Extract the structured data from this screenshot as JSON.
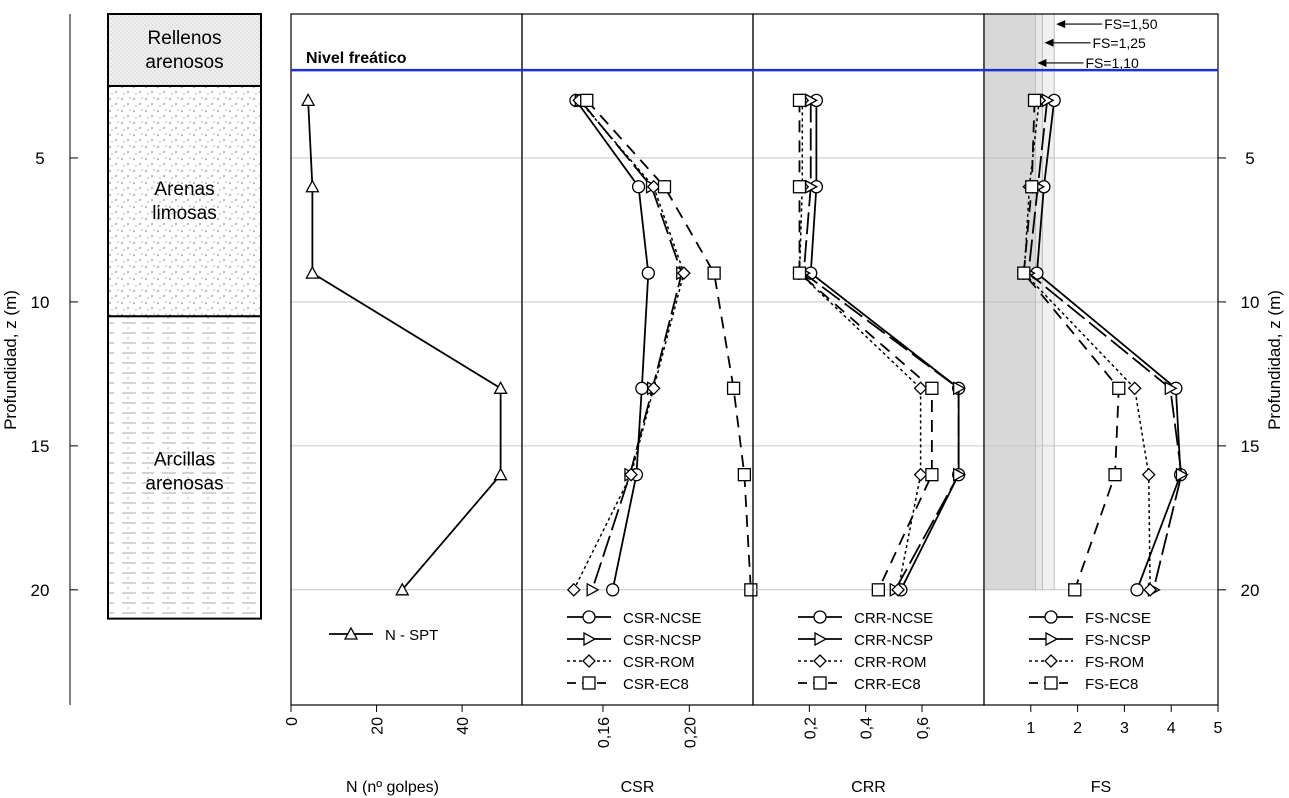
{
  "y_axis": {
    "label": "Profundidad, z (m)",
    "ticks": [
      5,
      10,
      15,
      20
    ],
    "range": [
      0,
      24
    ]
  },
  "soil_column": {
    "layers": [
      {
        "name_lines": [
          "Rellenos",
          "arenosos"
        ],
        "top": 0,
        "bottom": 2.5,
        "pattern": "fine-dots"
      },
      {
        "name_lines": [
          "Arenas",
          "limosas"
        ],
        "top": 2.5,
        "bottom": 10.5,
        "pattern": "dots"
      },
      {
        "name_lines": [
          "Arcillas",
          "arenosas"
        ],
        "top": 10.5,
        "bottom": 21,
        "pattern": "dashes"
      }
    ]
  },
  "water_table": {
    "label": "Nivel freático",
    "depth": 1.95,
    "color": "#1f2fd6"
  },
  "chart_data": [
    {
      "type": "line",
      "xlabel": "N (nº golpes)",
      "xlim": [
        0,
        54
      ],
      "xticks": [
        {
          "v": 0,
          "label": "0"
        },
        {
          "v": 20,
          "label": "20"
        },
        {
          "v": 40,
          "label": "40"
        }
      ],
      "series": [
        {
          "name": "N - SPT",
          "marker": "triangle-up",
          "dash": "solid",
          "points": [
            [
              4,
              3
            ],
            [
              5,
              6
            ],
            [
              5,
              9
            ],
            [
              49,
              13
            ],
            [
              49,
              16
            ],
            [
              26,
              20
            ]
          ]
        }
      ]
    },
    {
      "type": "line",
      "xlabel": "CSR",
      "xlim": [
        0.1225,
        0.2295
      ],
      "xticks": [
        {
          "v": 0.16,
          "label": "0,16"
        },
        {
          "v": 0.2,
          "label": "0,20"
        }
      ],
      "series": [
        {
          "name": "CSR-NCSE",
          "marker": "circle",
          "dash": "solid",
          "points": [
            [
              0.1475,
              3
            ],
            [
              0.1765,
              6
            ],
            [
              0.181,
              9
            ],
            [
              0.178,
              13
            ],
            [
              0.1755,
              16
            ],
            [
              0.1645,
              20
            ]
          ]
        },
        {
          "name": "CSR-NCSP",
          "marker": "triangle-right",
          "dash": "longdash",
          "points": [
            [
              0.1495,
              3
            ],
            [
              0.1825,
              6
            ],
            [
              0.1965,
              9
            ],
            [
              0.183,
              13
            ],
            [
              0.1725,
              16
            ],
            [
              0.155,
              20
            ]
          ]
        },
        {
          "name": "CSR-ROM",
          "marker": "diamond",
          "dash": "dotted",
          "points": [
            [
              0.149,
              3
            ],
            [
              0.1835,
              6
            ],
            [
              0.1975,
              9
            ],
            [
              0.1835,
              13
            ],
            [
              0.173,
              16
            ],
            [
              0.1465,
              20
            ]
          ]
        },
        {
          "name": "CSR-EC8",
          "marker": "square",
          "dash": "dashed",
          "points": [
            [
              0.1525,
              3
            ],
            [
              0.1885,
              6
            ],
            [
              0.2115,
              9
            ],
            [
              0.2205,
              13
            ],
            [
              0.2255,
              16
            ],
            [
              0.2285,
              20
            ]
          ]
        }
      ]
    },
    {
      "type": "line",
      "xlabel": "CRR",
      "xlim": [
        0.0,
        0.82
      ],
      "xticks": [
        {
          "v": 0.2,
          "label": "0,2"
        },
        {
          "v": 0.4,
          "label": "0,4"
        },
        {
          "v": 0.6,
          "label": "0,6"
        }
      ],
      "series": [
        {
          "name": "CRR-NCSE",
          "marker": "circle",
          "dash": "solid",
          "points": [
            [
              0.225,
              3
            ],
            [
              0.225,
              6
            ],
            [
              0.205,
              9
            ],
            [
              0.73,
              13
            ],
            [
              0.73,
              16
            ],
            [
              0.525,
              20
            ]
          ]
        },
        {
          "name": "CRR-NCSP",
          "marker": "triangle-right",
          "dash": "longdash",
          "points": [
            [
              0.205,
              3
            ],
            [
              0.205,
              6
            ],
            [
              0.18,
              9
            ],
            [
              0.73,
              13
            ],
            [
              0.73,
              16
            ],
            [
              0.505,
              20
            ]
          ]
        },
        {
          "name": "CRR-ROM",
          "marker": "diamond",
          "dash": "dotted",
          "points": [
            [
              0.175,
              3
            ],
            [
              0.175,
              6
            ],
            [
              0.165,
              9
            ],
            [
              0.595,
              13
            ],
            [
              0.595,
              16
            ],
            [
              0.515,
              20
            ]
          ]
        },
        {
          "name": "CRR-EC8",
          "marker": "square",
          "dash": "dashed",
          "points": [
            [
              0.165,
              3
            ],
            [
              0.165,
              6
            ],
            [
              0.165,
              9
            ],
            [
              0.635,
              13
            ],
            [
              0.635,
              16
            ],
            [
              0.445,
              20
            ]
          ]
        }
      ]
    },
    {
      "type": "line",
      "xlabel": "FS",
      "xlim": [
        0,
        5
      ],
      "xticks": [
        {
          "v": 1,
          "label": "1"
        },
        {
          "v": 2,
          "label": "2"
        },
        {
          "v": 3,
          "label": "3"
        },
        {
          "v": 4,
          "label": "4"
        },
        {
          "v": 5,
          "label": "5"
        }
      ],
      "reference_lines": [
        {
          "value": 1.5,
          "label": "FS=1,50",
          "label_depth": 0.35
        },
        {
          "value": 1.25,
          "label": "FS=1,25",
          "label_depth": 1.0
        },
        {
          "value": 1.1,
          "label": "FS=1,10",
          "label_depth": 1.7
        }
      ],
      "shaded_region": {
        "from": 0,
        "to": 1.1,
        "color": "#d8d8d8"
      },
      "series": [
        {
          "name": "FS-NCSE",
          "marker": "circle",
          "dash": "solid",
          "points": [
            [
              1.5,
              3
            ],
            [
              1.28,
              6
            ],
            [
              1.13,
              9
            ],
            [
              4.1,
              13
            ],
            [
              4.2,
              16
            ],
            [
              3.27,
              20
            ]
          ]
        },
        {
          "name": "FS-NCSP",
          "marker": "triangle-right",
          "dash": "longdash",
          "points": [
            [
              1.35,
              3
            ],
            [
              1.15,
              6
            ],
            [
              0.95,
              9
            ],
            [
              3.98,
              13
            ],
            [
              4.22,
              16
            ],
            [
              3.62,
              20
            ]
          ]
        },
        {
          "name": "FS-ROM",
          "marker": "diamond",
          "dash": "dotted",
          "points": [
            [
              1.18,
              3
            ],
            [
              0.97,
              6
            ],
            [
              0.86,
              9
            ],
            [
              3.22,
              13
            ],
            [
              3.52,
              16
            ],
            [
              3.55,
              20
            ]
          ]
        },
        {
          "name": "FS-EC8",
          "marker": "square",
          "dash": "dashed",
          "points": [
            [
              1.08,
              3
            ],
            [
              1.02,
              6
            ],
            [
              0.85,
              9
            ],
            [
              2.88,
              13
            ],
            [
              2.8,
              16
            ],
            [
              1.94,
              20
            ]
          ]
        }
      ]
    }
  ]
}
